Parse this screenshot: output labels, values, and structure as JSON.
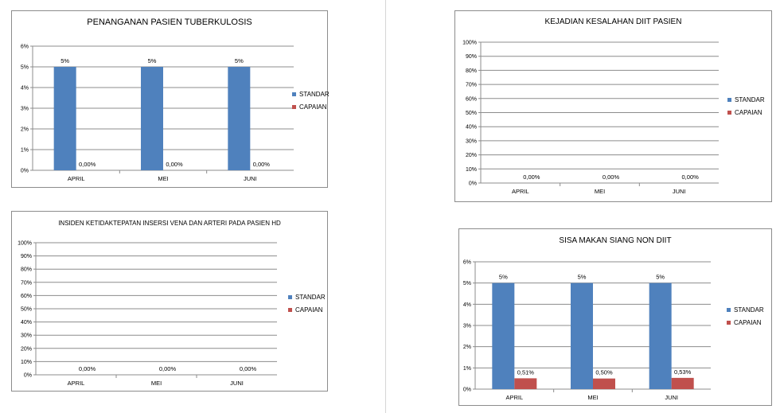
{
  "colors": {
    "standar": "#4F81BD",
    "capaian": "#C0504D",
    "grid": "#8c8c8c"
  },
  "chart_data": [
    {
      "type": "bar",
      "title": "PENANGANAN PASIEN TUBERKULOSIS",
      "categories": [
        "APRIL",
        "MEI",
        "JUNI"
      ],
      "series": [
        {
          "name": "STANDAR",
          "values": [
            5,
            5,
            5
          ],
          "labels": [
            "5%",
            "5%",
            "5%"
          ]
        },
        {
          "name": "CAPAIAN",
          "values": [
            0,
            0,
            0
          ],
          "labels": [
            "0,00%",
            "0,00%",
            "0,00%"
          ]
        }
      ],
      "ylim": [
        0,
        6
      ],
      "yticks": [
        "0%",
        "1%",
        "2%",
        "3%",
        "4%",
        "5%",
        "6%"
      ],
      "grid": true,
      "legend": "right"
    },
    {
      "type": "bar",
      "title": "KEJADIAN KESALAHAN DIIT PASIEN",
      "categories": [
        "APRIL",
        "MEI",
        "JUNI"
      ],
      "series": [
        {
          "name": "STANDAR",
          "values": [
            0,
            0,
            0
          ],
          "labels": [
            "",
            "",
            ""
          ]
        },
        {
          "name": "CAPAIAN",
          "values": [
            0,
            0,
            0
          ],
          "labels": [
            "0,00%",
            "0,00%",
            "0,00%"
          ]
        }
      ],
      "ylim": [
        0,
        100
      ],
      "yticks": [
        "0%",
        "10%",
        "20%",
        "30%",
        "40%",
        "50%",
        "60%",
        "70%",
        "80%",
        "90%",
        "100%"
      ],
      "grid": true,
      "legend": "right"
    },
    {
      "type": "bar",
      "title": "INSIDEN KETIDAKTEPATAN INSERSI VENA DAN ARTERI PADA PASIEN HD",
      "categories": [
        "APRIL",
        "MEI",
        "JUNI"
      ],
      "series": [
        {
          "name": "STANDAR",
          "values": [
            0,
            0,
            0
          ],
          "labels": [
            "",
            "",
            ""
          ]
        },
        {
          "name": "CAPAIAN",
          "values": [
            0,
            0,
            0
          ],
          "labels": [
            "0,00%",
            "0,00%",
            "0,00%"
          ]
        }
      ],
      "ylim": [
        0,
        100
      ],
      "yticks": [
        "0%",
        "10%",
        "20%",
        "30%",
        "40%",
        "50%",
        "60%",
        "70%",
        "80%",
        "90%",
        "100%"
      ],
      "grid": true,
      "legend": "right"
    },
    {
      "type": "bar",
      "title": "SISA MAKAN SIANG NON DIIT",
      "categories": [
        "APRIL",
        "MEI",
        "JUNI"
      ],
      "series": [
        {
          "name": "STANDAR",
          "values": [
            5,
            5,
            5
          ],
          "labels": [
            "5%",
            "5%",
            "5%"
          ]
        },
        {
          "name": "CAPAIAN",
          "values": [
            0.51,
            0.5,
            0.53
          ],
          "labels": [
            "0,51%",
            "0,50%",
            "0,53%"
          ]
        }
      ],
      "ylim": [
        0,
        6
      ],
      "yticks": [
        "0%",
        "1%",
        "2%",
        "3%",
        "4%",
        "5%",
        "6%"
      ],
      "grid": true,
      "legend": "right"
    }
  ]
}
